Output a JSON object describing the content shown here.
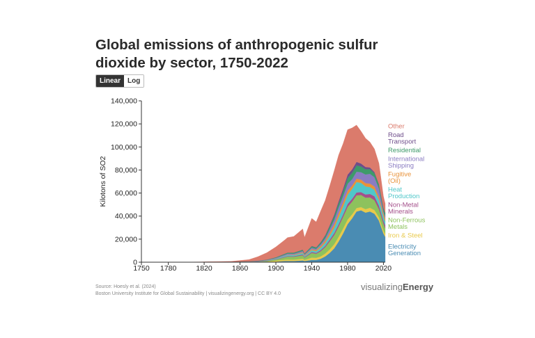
{
  "title": "Global emissions of anthropogenic sulfur dioxide by sector, 1750-2022",
  "toggle": {
    "linear_label": "Linear",
    "log_label": "Log",
    "selected": "Linear"
  },
  "footer": {
    "source": "Source: Hoesly et al. (2024)",
    "credit": "Boston University Institute for Global Sustainability | visualizingenergy.org | CC BY 4.0"
  },
  "brand": {
    "part1": "visualizing",
    "part2": "Energy"
  },
  "chart_data": {
    "type": "area",
    "stacked": true,
    "title": "Global emissions of anthropogenic sulfur dioxide by sector, 1750-2022",
    "ylabel": "Kilotons of SO2",
    "xlabel": "",
    "xlim": [
      1750,
      2022
    ],
    "ylim": [
      0,
      140000
    ],
    "x_ticks": [
      1750,
      1780,
      1820,
      1860,
      1900,
      1940,
      1980,
      2020
    ],
    "y_ticks": [
      0,
      20000,
      40000,
      60000,
      80000,
      100000,
      120000,
      140000
    ],
    "y_tick_labels": [
      "0",
      "20,000",
      "40,000",
      "60,000",
      "80,000",
      "100,000",
      "120,000",
      "140,000"
    ],
    "grid": false,
    "legend": "right-end labels",
    "x": [
      1750,
      1800,
      1850,
      1870,
      1880,
      1890,
      1900,
      1910,
      1913,
      1920,
      1930,
      1932,
      1940,
      1945,
      1950,
      1955,
      1960,
      1965,
      1970,
      1975,
      1980,
      1985,
      1990,
      1995,
      2000,
      2005,
      2010,
      2015,
      2020,
      2022
    ],
    "series": [
      {
        "name": "Electricity Generation",
        "color": "#4a8cb3",
        "values": [
          0,
          0,
          0,
          0,
          0,
          0,
          500,
          1000,
          1000,
          1000,
          1500,
          1000,
          2000,
          2000,
          3000,
          5000,
          8000,
          12000,
          18000,
          25000,
          33000,
          38000,
          44000,
          45000,
          43000,
          44000,
          42000,
          36000,
          25000,
          22000
        ]
      },
      {
        "name": "Iron & Steel",
        "color": "#e8c94a",
        "values": [
          0,
          0,
          100,
          200,
          300,
          500,
          800,
          1200,
          1300,
          1200,
          1500,
          1000,
          2000,
          1800,
          2000,
          2500,
          3000,
          3500,
          4000,
          4200,
          4000,
          3500,
          3000,
          2800,
          3000,
          3200,
          3200,
          3000,
          2500,
          2500
        ]
      },
      {
        "name": "Non-Ferrous Metals",
        "color": "#8dc25d",
        "values": [
          0,
          0,
          50,
          100,
          200,
          500,
          1000,
          2000,
          2500,
          2500,
          3000,
          2000,
          4000,
          3500,
          4500,
          5500,
          7000,
          8000,
          9000,
          10000,
          11000,
          11000,
          11000,
          10500,
          10000,
          9000,
          8500,
          7000,
          6000,
          5000
        ]
      },
      {
        "name": "Non-Metal Minerals",
        "color": "#a4508b",
        "values": [
          0,
          0,
          50,
          100,
          100,
          200,
          300,
          500,
          500,
          500,
          700,
          500,
          900,
          800,
          1000,
          1200,
          1500,
          1800,
          2000,
          2200,
          2500,
          2500,
          2500,
          2500,
          2800,
          3000,
          3500,
          3000,
          2500,
          2500
        ]
      },
      {
        "name": "Heat Production",
        "color": "#4fc7c9",
        "values": [
          0,
          0,
          50,
          100,
          200,
          300,
          500,
          800,
          900,
          900,
          1200,
          800,
          1500,
          1400,
          2000,
          2500,
          3500,
          4500,
          6000,
          7000,
          8000,
          8500,
          9000,
          8000,
          7000,
          6000,
          5500,
          5000,
          4000,
          3500
        ]
      },
      {
        "name": "Fugitive (Oil)",
        "color": "#e8923a",
        "values": [
          0,
          0,
          0,
          0,
          0,
          50,
          100,
          200,
          300,
          500,
          800,
          600,
          1000,
          1000,
          1500,
          2000,
          2500,
          3000,
          3500,
          3500,
          3500,
          3000,
          3000,
          2800,
          2800,
          3000,
          3000,
          2800,
          2500,
          2500
        ]
      },
      {
        "name": "International Shipping",
        "color": "#8a7cc2",
        "values": [
          0,
          0,
          50,
          100,
          200,
          300,
          500,
          800,
          900,
          800,
          1000,
          800,
          1200,
          1000,
          1500,
          2000,
          3000,
          4000,
          5000,
          5500,
          6000,
          5500,
          6000,
          6500,
          7500,
          8500,
          8000,
          7000,
          1500,
          1500
        ]
      },
      {
        "name": "Residential",
        "color": "#3e9a6a",
        "values": [
          0,
          0,
          100,
          200,
          300,
          400,
          600,
          800,
          900,
          900,
          1000,
          800,
          1200,
          1200,
          1500,
          2000,
          2500,
          3000,
          3500,
          4000,
          5000,
          5500,
          5500,
          5000,
          4500,
          4000,
          3500,
          3500,
          3000,
          3000
        ]
      },
      {
        "name": "Road Transport",
        "color": "#6e4d8a",
        "values": [
          0,
          0,
          0,
          0,
          0,
          0,
          0,
          50,
          50,
          100,
          200,
          150,
          300,
          300,
          500,
          800,
          1000,
          1500,
          2000,
          2500,
          3000,
          3000,
          3000,
          2500,
          2000,
          1500,
          1000,
          500,
          300,
          300
        ]
      },
      {
        "name": "Other",
        "color": "#db7b6c",
        "values": [
          0,
          50,
          300,
          1500,
          3500,
          6000,
          9000,
          12000,
          13000,
          14000,
          18000,
          14000,
          24000,
          22000,
          27000,
          30000,
          34000,
          38000,
          40000,
          39000,
          39000,
          36000,
          32000,
          28000,
          25000,
          22000,
          20000,
          18000,
          10000,
          8000
        ]
      }
    ]
  }
}
